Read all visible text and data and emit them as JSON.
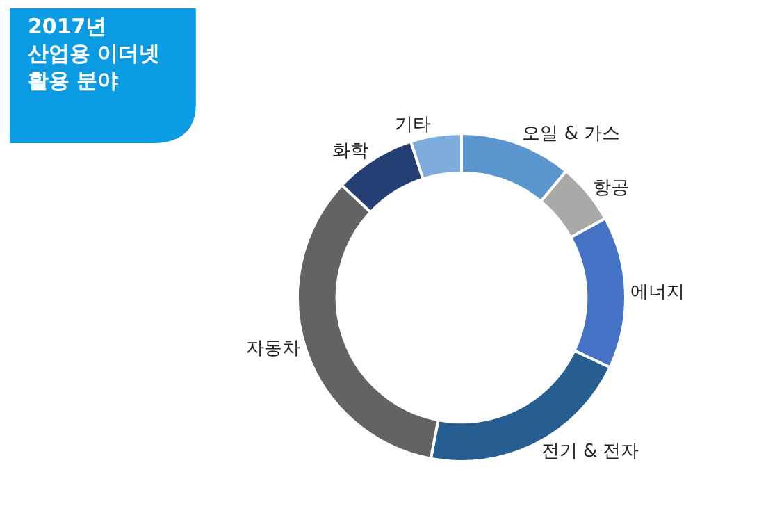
{
  "chart_data": {
    "type": "donut",
    "title": "2017년\n산업용 이더넷\n활용 분야",
    "categories": [
      "오일 & 가스",
      "항공",
      "에너지",
      "전기 & 전자",
      "자동차",
      "화학",
      "기타"
    ],
    "values": [
      11,
      6,
      15,
      21,
      34,
      8,
      5
    ],
    "colors": [
      "#5b96cf",
      "#a9a9a9",
      "#4472c4",
      "#265e91",
      "#636363",
      "#233f74",
      "#7eaddb"
    ],
    "legend": false
  }
}
